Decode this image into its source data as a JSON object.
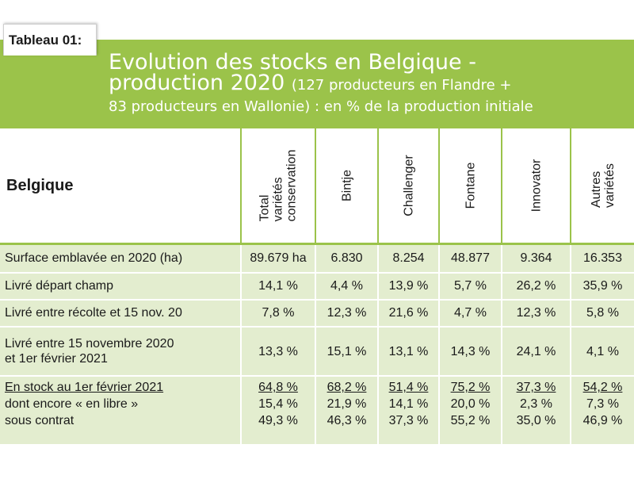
{
  "tag": "Tableau 01:",
  "title": {
    "line1": "Evolution des stocks en Belgique -",
    "line2": "production 2020",
    "line2_sub": "(127 producteurs en Flandre +",
    "line3": "83 producteurs en Wallonie) : en % de la production initiale"
  },
  "header": {
    "corner": "Belgique",
    "cols": [
      "Total\nvariétés\nconservation",
      "Bintje",
      "Challenger",
      "Fontane",
      "Innovator",
      "Autres\nvariétés"
    ]
  },
  "rows": [
    {
      "label": "Surface emblavée en 2020 (ha)",
      "values": [
        "89.679 ha",
        "6.830",
        "8.254",
        "48.877",
        "9.364",
        "16.353"
      ]
    },
    {
      "label": "Livré départ champ",
      "values": [
        "14,1 %",
        "4,4 %",
        "13,9 %",
        "5,7 %",
        "26,2 %",
        "35,9 %"
      ]
    },
    {
      "label": "Livré entre récolte et 15 nov. 20",
      "values": [
        "7,8 %",
        "12,3 %",
        "21,6 %",
        "4,7 %",
        "12,3 %",
        "5,8 %"
      ]
    },
    {
      "label_lines": [
        "Livré entre 15 novembre 2020",
        "et 1er février 2021"
      ],
      "values": [
        "13,3 %",
        "15,1 %",
        "13,1 %",
        "14,3 %",
        "24,1 %",
        "4,1 %"
      ]
    },
    {
      "label_lines": [
        "En stock au 1er février 2021",
        "dont encore « en libre »",
        "sous contrat"
      ],
      "values": [
        [
          "64,8 %",
          "15,4 %",
          "49,3 %"
        ],
        [
          "68,2 %",
          "21,9 %",
          "46,3 %"
        ],
        [
          "51,4 %",
          "14,1 %",
          "37,3 %"
        ],
        [
          "75,2 %",
          "20,0 %",
          "55,2 %"
        ],
        [
          "37,3 %",
          "2,3 %",
          "35,0 %"
        ],
        [
          "54,2 %",
          "7,3 %",
          "46,9 %"
        ]
      ]
    }
  ],
  "colors": {
    "accent": "#9bc34a",
    "row_bg": "#e3edcf"
  }
}
